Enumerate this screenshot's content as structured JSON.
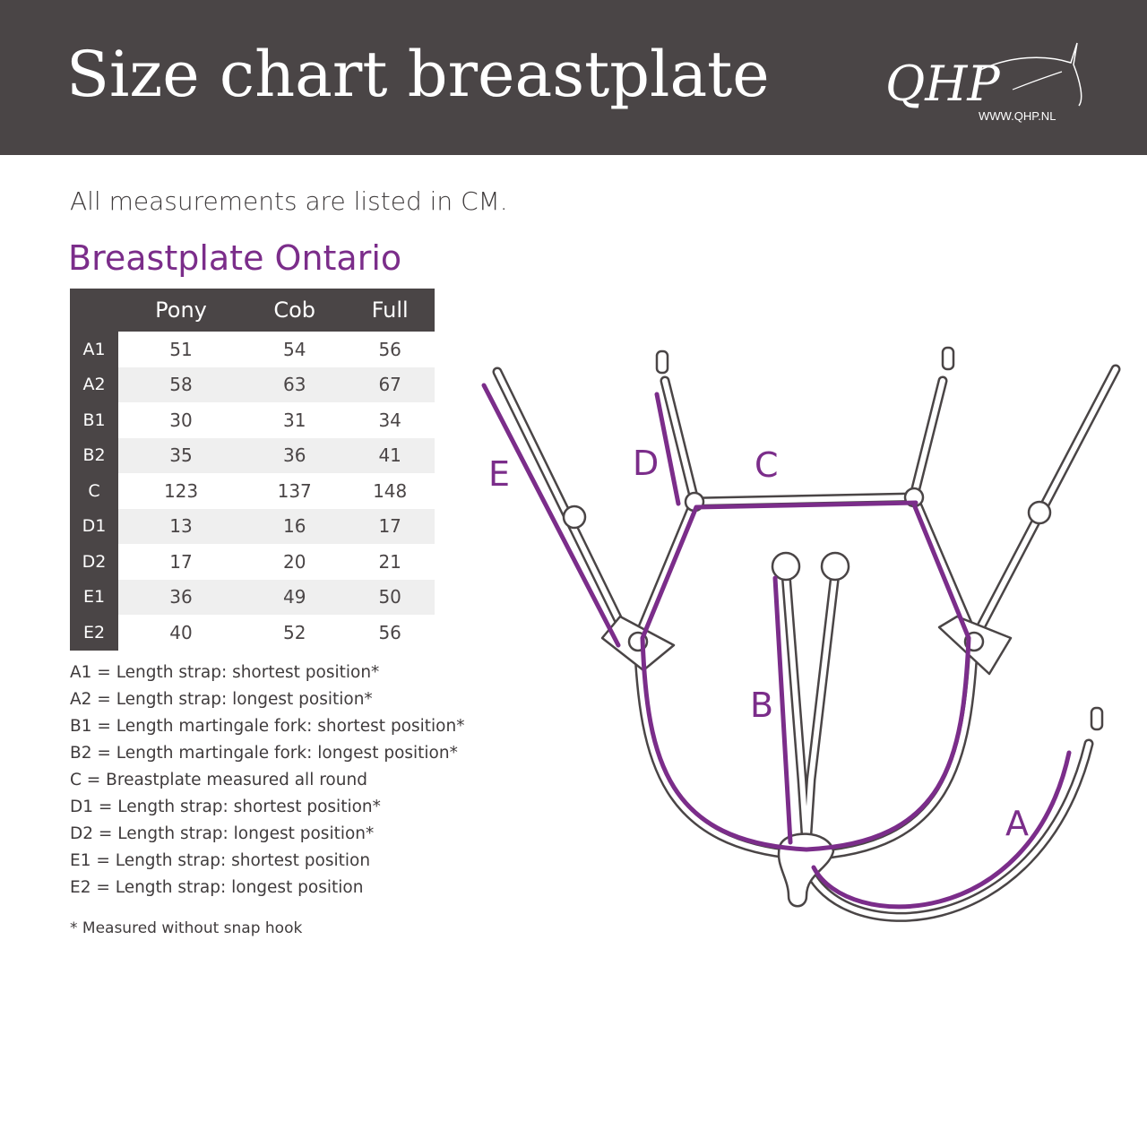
{
  "header": {
    "title": "Size chart breastplate",
    "logo_text": "QHP",
    "logo_url": "WWW.QHP.NL"
  },
  "intro": "All measurements are listed in CM.",
  "product_title": "Breastplate Ontario",
  "colors": {
    "header_bg": "#4a4546",
    "accent": "#7b2d8a",
    "row_alt": "#efefef"
  },
  "table": {
    "columns": [
      "Pony",
      "Cob",
      "Full"
    ],
    "rows": [
      {
        "label": "A1",
        "values": [
          "51",
          "54",
          "56"
        ]
      },
      {
        "label": "A2",
        "values": [
          "58",
          "63",
          "67"
        ]
      },
      {
        "label": "B1",
        "values": [
          "30",
          "31",
          "34"
        ]
      },
      {
        "label": "B2",
        "values": [
          "35",
          "36",
          "41"
        ]
      },
      {
        "label": "C",
        "values": [
          "123",
          "137",
          "148"
        ]
      },
      {
        "label": "D1",
        "values": [
          "13",
          "16",
          "17"
        ]
      },
      {
        "label": "D2",
        "values": [
          "17",
          "20",
          "21"
        ]
      },
      {
        "label": "E1",
        "values": [
          "36",
          "49",
          "50"
        ]
      },
      {
        "label": "E2",
        "values": [
          "40",
          "52",
          "56"
        ]
      }
    ]
  },
  "legend": [
    "A1 = Length strap: shortest position*",
    "A2 = Length strap: longest position*",
    "B1  = Length martingale fork: shortest position*",
    "B2 = Length martingale fork: longest position*",
    "C   = Breastplate measured all round",
    "D1 = Length strap: shortest position*",
    "D2 = Length strap: longest position*",
    "E1  = Length strap: shortest position",
    "E2 = Length strap: longest position"
  ],
  "footnote": "* Measured without snap hook",
  "diagram": {
    "labels": {
      "a": "A",
      "b": "B",
      "c": "C",
      "d": "D",
      "e": "E"
    }
  }
}
